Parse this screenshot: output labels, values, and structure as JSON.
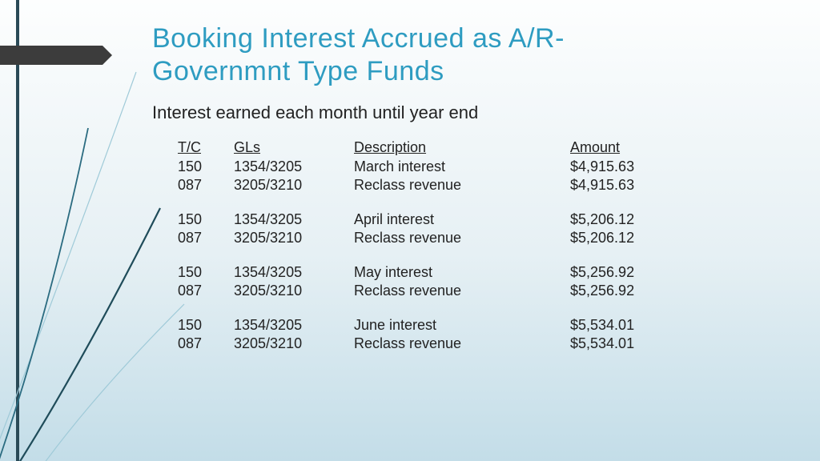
{
  "title_line1": "Booking Interest Accrued as A/R-",
  "title_line2": "Governmnt Type Funds",
  "subline": "Interest earned each month until year end",
  "headers": {
    "tc": "T/C",
    "gls": "GLs",
    "desc": "Description",
    "amt": "Amount"
  },
  "groups": [
    {
      "rows": [
        {
          "tc": "150",
          "gls": "1354/3205",
          "desc": "March interest",
          "amt": "$4,915.63"
        },
        {
          "tc": "087",
          "gls": "3205/3210",
          "desc": "Reclass revenue",
          "amt": "$4,915.63"
        }
      ]
    },
    {
      "rows": [
        {
          "tc": "150",
          "gls": "1354/3205",
          "desc": "April interest",
          "amt": "$5,206.12"
        },
        {
          "tc": "087",
          "gls": "3205/3210",
          "desc": "Reclass revenue",
          "amt": "$5,206.12"
        }
      ]
    },
    {
      "rows": [
        {
          "tc": "150",
          "gls": "1354/3205",
          "desc": "May interest",
          "amt": "$5,256.92"
        },
        {
          "tc": "087",
          "gls": "3205/3210",
          "desc": "Reclass revenue",
          "amt": "$5,256.92"
        }
      ]
    },
    {
      "rows": [
        {
          "tc": "150",
          "gls": "1354/3205",
          "desc": "June interest",
          "amt": "$5,534.01"
        },
        {
          "tc": "087",
          "gls": "3205/3210",
          "desc": "Reclass revenue",
          "amt": "$5,534.01"
        }
      ]
    }
  ],
  "style": {
    "accent_color": "#2e9cc1",
    "left_rule_color": "#2a4a57",
    "arrow_color": "#3c3c3c",
    "curve_colors": [
      "#9fcad8",
      "#2a6b80",
      "#1f4c5a"
    ]
  }
}
